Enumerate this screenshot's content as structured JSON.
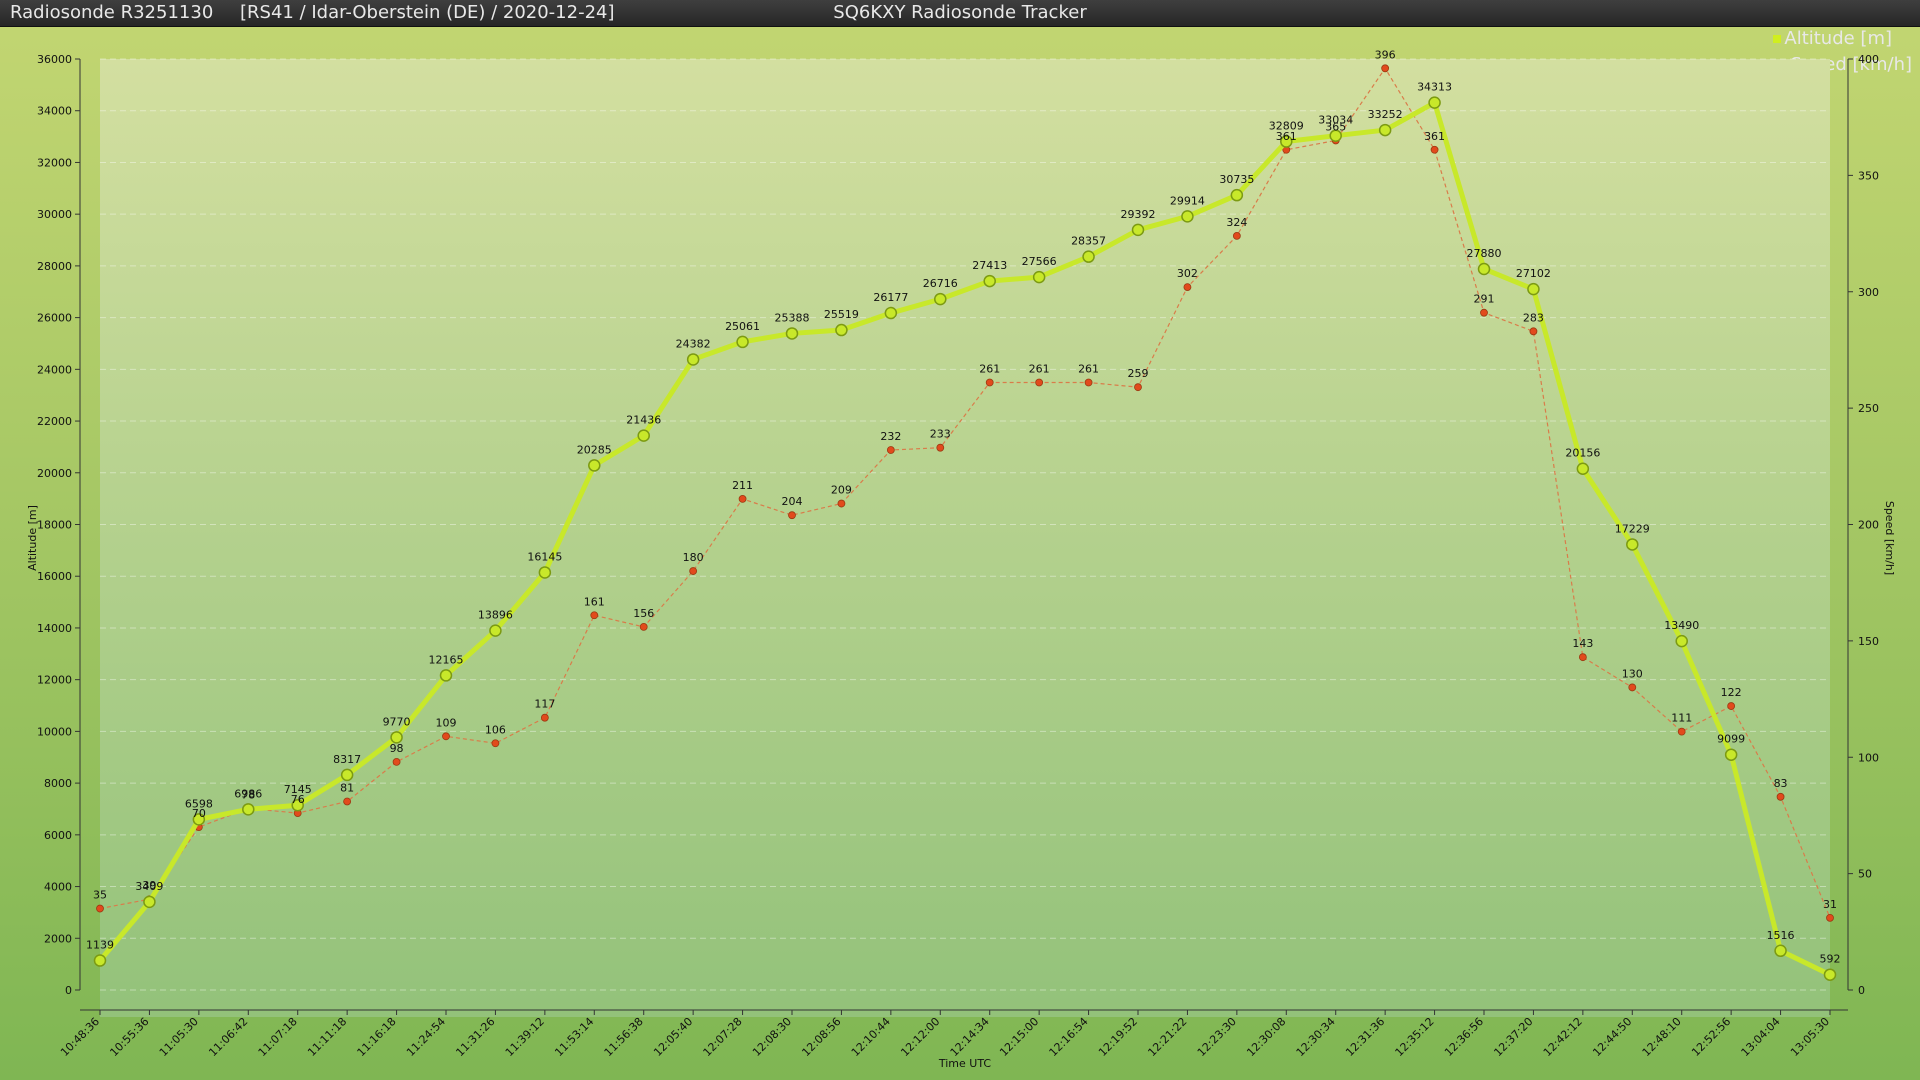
{
  "window": {
    "left_title": "Radiosonde R3251130",
    "info": "[RS41 / Idar-Oberstein (DE) / 2020-12-24]",
    "center_title": "SQ6KXY Radiosonde Tracker"
  },
  "legend": [
    {
      "label": "Altitude [m]",
      "color": "#d0ee20"
    },
    {
      "label": "Speed [km/h]",
      "color": "#e0551f"
    }
  ],
  "colors": {
    "altitude_line": "#c8e82a",
    "altitude_marker_stroke": "#7c9a12",
    "speed_line": "#d97c4a",
    "speed_marker": "#e24a1c"
  },
  "chart_data": {
    "type": "line",
    "xlabel": "Time UTC",
    "ylabel": "Altitude [m]",
    "y2label": "Speed [km/h]",
    "ylim": [
      0,
      36000
    ],
    "y2lim": [
      0,
      400
    ],
    "yticks": [
      0,
      2000,
      4000,
      6000,
      8000,
      10000,
      12000,
      14000,
      16000,
      18000,
      20000,
      22000,
      24000,
      26000,
      28000,
      30000,
      32000,
      34000,
      36000
    ],
    "y2ticks": [
      0,
      50,
      100,
      150,
      200,
      250,
      300,
      350,
      400
    ],
    "grid": true,
    "categories": [
      "10:48:36",
      "10:55:36",
      "11:05:30",
      "11:06:42",
      "11:07:18",
      "11:11:18",
      "11:16:18",
      "11:24:54",
      "11:31:26",
      "11:39:12",
      "11:53:14",
      "11:56:38",
      "12:05:40",
      "12:07:28",
      "12:08:30",
      "12:08:56",
      "12:10:44",
      "12:12:00",
      "12:14:34",
      "12:15:00",
      "12:16:54",
      "12:19:52",
      "12:21:22",
      "12:23:30",
      "12:30:08",
      "12:30:34",
      "12:31:36",
      "12:35:12",
      "12:36:56",
      "12:37:20",
      "12:42:12",
      "12:44:50",
      "12:48:10",
      "12:52:56",
      "13:04:04",
      "13:05:30"
    ],
    "series": [
      {
        "name": "Altitude [m]",
        "axis": "left",
        "values": [
          1139,
          3409,
          6598,
          6986,
          7145,
          8317,
          9770,
          12165,
          13896,
          16145,
          20285,
          21436,
          24382,
          25061,
          25388,
          25519,
          26177,
          26716,
          27413,
          27566,
          28357,
          29392,
          29914,
          30735,
          32809,
          33034,
          33252,
          34313,
          27880,
          27102,
          20156,
          17229,
          13490,
          9099,
          1516,
          592
        ]
      },
      {
        "name": "Speed [km/h]",
        "axis": "right",
        "values": [
          35,
          39,
          70,
          78,
          76,
          81,
          98,
          109,
          106,
          117,
          161,
          156,
          180,
          211,
          204,
          209,
          232,
          233,
          261,
          261,
          261,
          259,
          302,
          324,
          361,
          365,
          396,
          361,
          291,
          283,
          143,
          130,
          111,
          122,
          83,
          31
        ]
      }
    ]
  }
}
